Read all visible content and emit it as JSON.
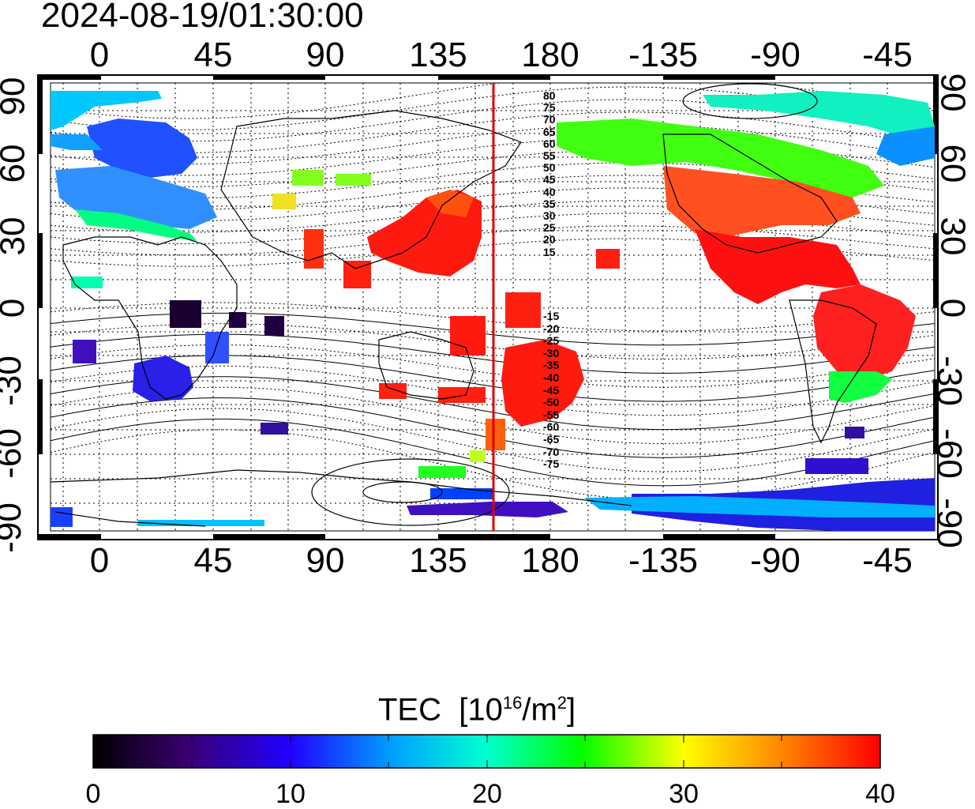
{
  "title": "2024-08-19/01:30:00",
  "map": {
    "x_ticks": [
      "0",
      "45",
      "90",
      "135",
      "180",
      "-135",
      "-90",
      "-45"
    ],
    "y_ticks": [
      "90",
      "60",
      "30",
      "0",
      "-30",
      "-60",
      "-90"
    ],
    "terminator_longitude": 157,
    "magnetic_latitude_labels": [
      "80",
      "75",
      "70",
      "65",
      "60",
      "55",
      "50",
      "45",
      "40",
      "35",
      "30",
      "25",
      "20",
      "15",
      "-15",
      "-20",
      "-25",
      "-30",
      "-35",
      "-40",
      "-45",
      "-50",
      "-55",
      "-60",
      "-65",
      "-70",
      "-75"
    ],
    "terminator_color": "#e00000"
  },
  "colorbar": {
    "label": "TEC",
    "unit_prefix": "[10",
    "unit_exp": "16",
    "unit_mid": "/m",
    "unit_exp2": "2",
    "unit_suffix": "]",
    "tick_labels": [
      "0",
      "10",
      "20",
      "30",
      "40"
    ],
    "min": 0,
    "max": 40,
    "colors": [
      "#000000",
      "#3a0070",
      "#2000ff",
      "#00a0ff",
      "#00ffd0",
      "#00ff00",
      "#ffff00",
      "#ff8000",
      "#ff0000"
    ]
  }
}
